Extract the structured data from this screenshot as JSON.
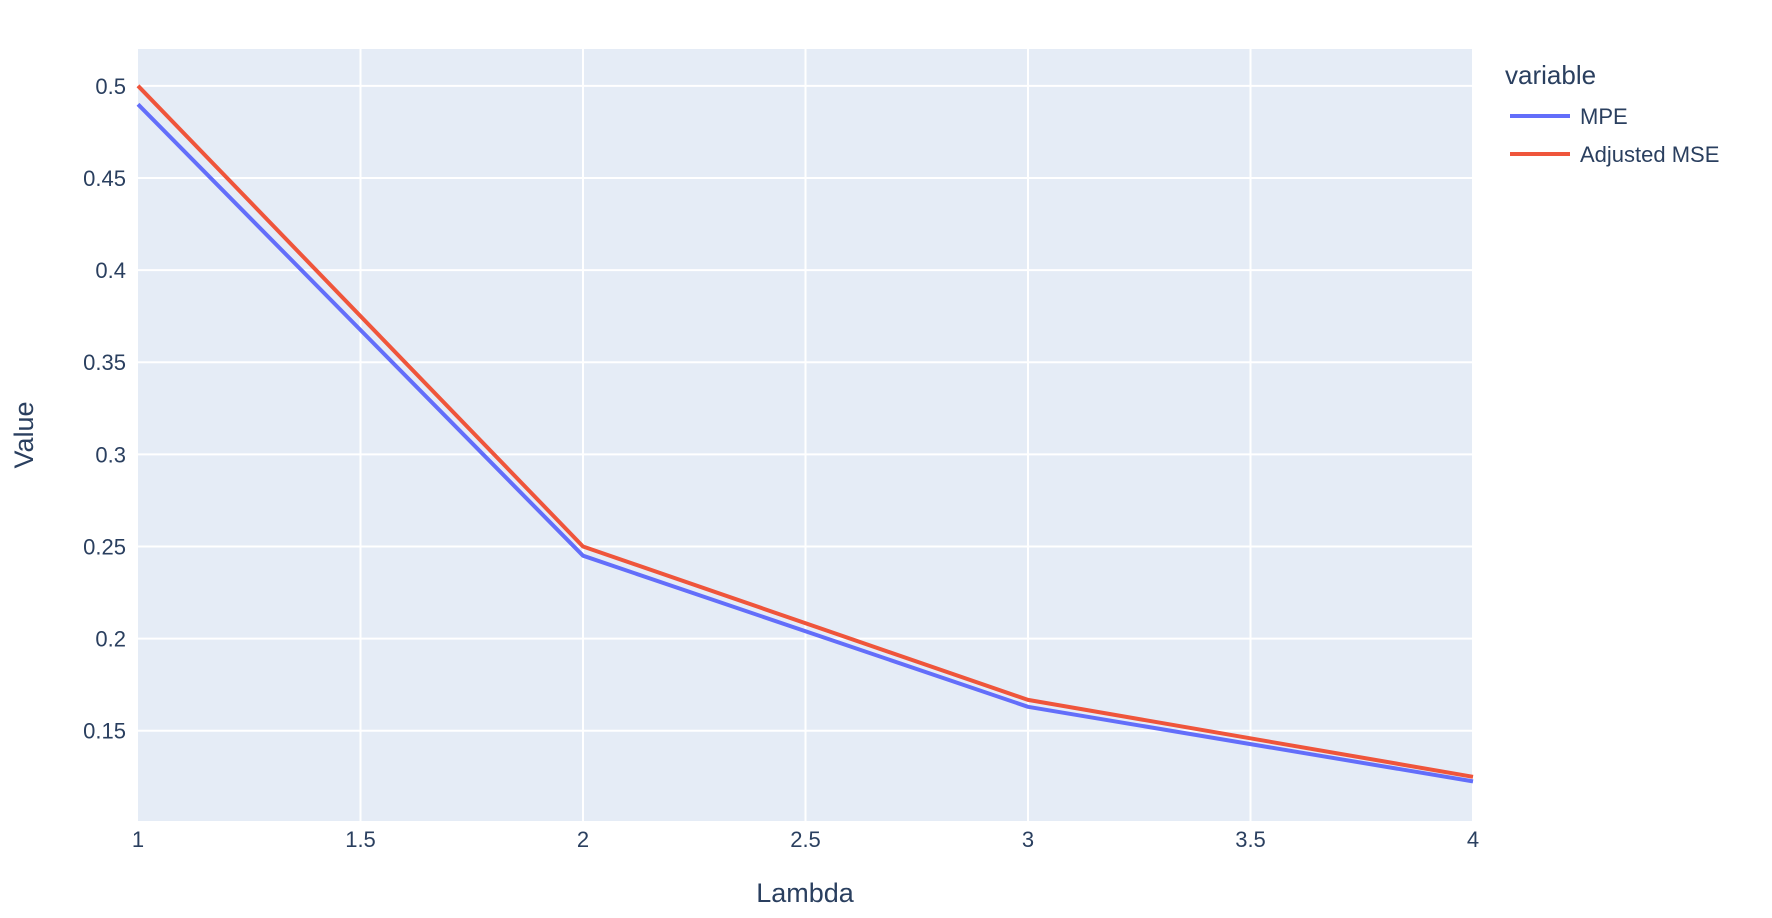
{
  "chart_data": {
    "type": "line",
    "xlabel": "Lambda",
    "ylabel": "Value",
    "xlim": [
      1,
      4
    ],
    "ylim": [
      0.101,
      0.52
    ],
    "x_ticks": [
      1,
      1.5,
      2,
      2.5,
      3,
      3.5,
      4
    ],
    "x_tick_labels": [
      "1",
      "1.5",
      "2",
      "2.5",
      "3",
      "3.5",
      "4"
    ],
    "y_ticks": [
      0.15,
      0.2,
      0.25,
      0.3,
      0.35,
      0.4,
      0.45,
      0.5
    ],
    "y_tick_labels": [
      "0.15",
      "0.2",
      "0.25",
      "0.3",
      "0.35",
      "0.4",
      "0.45",
      "0.5"
    ],
    "grid": true,
    "plot_background": "#e5ecf6",
    "grid_color": "#ffffff",
    "legend": {
      "title": "variable",
      "placement": "right-top"
    },
    "x": [
      1,
      2,
      3,
      4
    ],
    "series": [
      {
        "name": "MPE",
        "color": "#636efa",
        "values": [
          0.49,
          0.245,
          0.163,
          0.1225
        ]
      },
      {
        "name": "Adjusted MSE",
        "color": "#ef553b",
        "values": [
          0.5,
          0.25,
          0.1667,
          0.125
        ]
      }
    ]
  }
}
